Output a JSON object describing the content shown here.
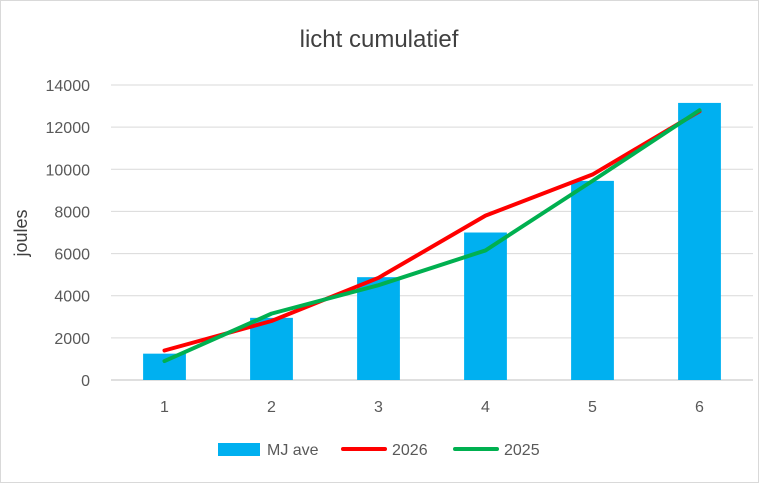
{
  "chart_data": {
    "type": "bar",
    "title": "licht cumulatief",
    "ylabel": "joules",
    "xlabel": "",
    "categories": [
      "1",
      "2",
      "3",
      "4",
      "5",
      "6"
    ],
    "ylim": [
      0,
      14000
    ],
    "yticks": [
      0,
      2000,
      4000,
      6000,
      8000,
      10000,
      12000,
      14000
    ],
    "grid": true,
    "legend_position": "bottom",
    "bar_series": {
      "name": "MJ ave",
      "color": "#00B0F0",
      "values": [
        1250,
        2950,
        4880,
        7000,
        9450,
        13150
      ]
    },
    "line_series": [
      {
        "name": "2026",
        "color": "#FF0000",
        "values": [
          1400,
          2800,
          4850,
          7800,
          9750,
          12750
        ]
      },
      {
        "name": "2025",
        "color": "#00B050",
        "values": [
          900,
          3150,
          4500,
          6150,
          9450,
          12800
        ]
      }
    ]
  }
}
